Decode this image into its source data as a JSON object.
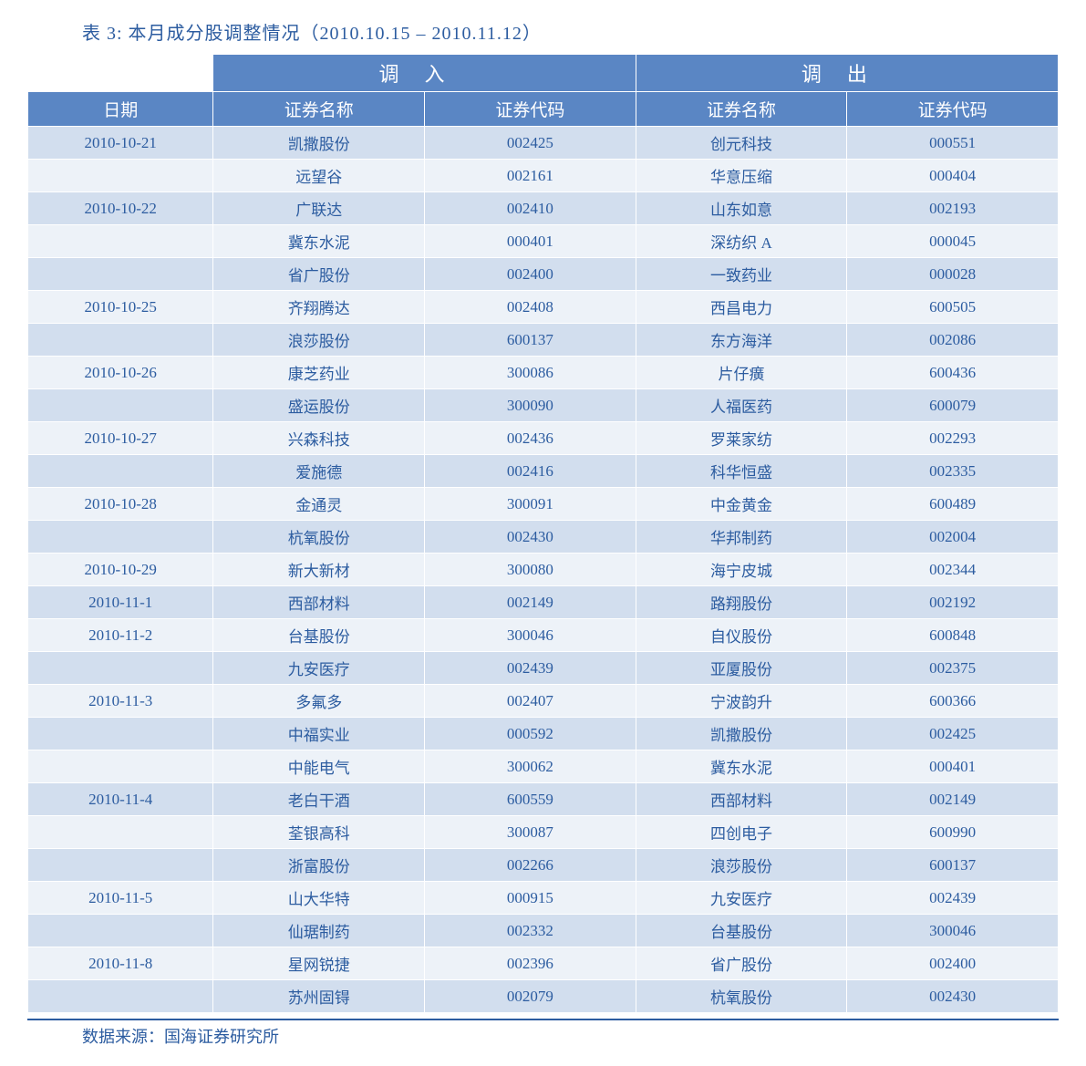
{
  "title": "表 3:  本月成分股调整情况（2010.10.15 – 2010.11.12）",
  "group_headers": {
    "in": "调入",
    "out": "调出"
  },
  "col_headers": {
    "date": "日期",
    "in_name": "证券名称",
    "in_code": "证券代码",
    "out_name": "证券名称",
    "out_code": "证券代码"
  },
  "rows": [
    {
      "date": "2010-10-21",
      "in_name": "凯撒股份",
      "in_code": "002425",
      "out_name": "创元科技",
      "out_code": "000551"
    },
    {
      "date": "",
      "in_name": "远望谷",
      "in_code": "002161",
      "out_name": "华意压缩",
      "out_code": "000404"
    },
    {
      "date": "2010-10-22",
      "in_name": "广联达",
      "in_code": "002410",
      "out_name": "山东如意",
      "out_code": "002193"
    },
    {
      "date": "",
      "in_name": "冀东水泥",
      "in_code": "000401",
      "out_name": "深纺织 A",
      "out_code": "000045"
    },
    {
      "date": "",
      "in_name": "省广股份",
      "in_code": "002400",
      "out_name": "一致药业",
      "out_code": "000028"
    },
    {
      "date": "2010-10-25",
      "in_name": "齐翔腾达",
      "in_code": "002408",
      "out_name": "西昌电力",
      "out_code": "600505"
    },
    {
      "date": "",
      "in_name": "浪莎股份",
      "in_code": "600137",
      "out_name": "东方海洋",
      "out_code": "002086"
    },
    {
      "date": "2010-10-26",
      "in_name": "康芝药业",
      "in_code": "300086",
      "out_name": "片仔癀",
      "out_code": "600436"
    },
    {
      "date": "",
      "in_name": "盛运股份",
      "in_code": "300090",
      "out_name": "人福医药",
      "out_code": "600079"
    },
    {
      "date": "2010-10-27",
      "in_name": "兴森科技",
      "in_code": "002436",
      "out_name": "罗莱家纺",
      "out_code": "002293"
    },
    {
      "date": "",
      "in_name": "爱施德",
      "in_code": "002416",
      "out_name": "科华恒盛",
      "out_code": "002335"
    },
    {
      "date": "2010-10-28",
      "in_name": "金通灵",
      "in_code": "300091",
      "out_name": "中金黄金",
      "out_code": "600489"
    },
    {
      "date": "",
      "in_name": "杭氧股份",
      "in_code": "002430",
      "out_name": "华邦制药",
      "out_code": "002004"
    },
    {
      "date": "2010-10-29",
      "in_name": "新大新材",
      "in_code": "300080",
      "out_name": "海宁皮城",
      "out_code": "002344"
    },
    {
      "date": "2010-11-1",
      "in_name": "西部材料",
      "in_code": "002149",
      "out_name": "路翔股份",
      "out_code": "002192"
    },
    {
      "date": "2010-11-2",
      "in_name": "台基股份",
      "in_code": "300046",
      "out_name": "自仪股份",
      "out_code": "600848"
    },
    {
      "date": "",
      "in_name": "九安医疗",
      "in_code": "002439",
      "out_name": "亚厦股份",
      "out_code": "002375"
    },
    {
      "date": "2010-11-3",
      "in_name": "多氟多",
      "in_code": "002407",
      "out_name": "宁波韵升",
      "out_code": "600366"
    },
    {
      "date": "",
      "in_name": "中福实业",
      "in_code": "000592",
      "out_name": "凯撒股份",
      "out_code": "002425"
    },
    {
      "date": "",
      "in_name": "中能电气",
      "in_code": "300062",
      "out_name": "冀东水泥",
      "out_code": "000401"
    },
    {
      "date": "2010-11-4",
      "in_name": "老白干酒",
      "in_code": "600559",
      "out_name": "西部材料",
      "out_code": "002149"
    },
    {
      "date": "",
      "in_name": "荃银高科",
      "in_code": "300087",
      "out_name": "四创电子",
      "out_code": "600990"
    },
    {
      "date": "",
      "in_name": "浙富股份",
      "in_code": "002266",
      "out_name": "浪莎股份",
      "out_code": "600137"
    },
    {
      "date": "2010-11-5",
      "in_name": "山大华特",
      "in_code": "000915",
      "out_name": "九安医疗",
      "out_code": "002439"
    },
    {
      "date": "",
      "in_name": "仙琚制药",
      "in_code": "002332",
      "out_name": "台基股份",
      "out_code": "300046"
    },
    {
      "date": "2010-11-8",
      "in_name": "星网锐捷",
      "in_code": "002396",
      "out_name": "省广股份",
      "out_code": "002400"
    },
    {
      "date": "",
      "in_name": "苏州固锝",
      "in_code": "002079",
      "out_name": "杭氧股份",
      "out_code": "002430"
    }
  ],
  "footer": "数据来源：国海证券研究所",
  "colors": {
    "header_bg": "#5a86c4",
    "header_text": "#ffffff",
    "row_odd_bg": "#d2deee",
    "row_even_bg": "#edf2f8",
    "cell_text": "#2c5ca0",
    "title_text": "#2c5ca0",
    "border": "#ffffff"
  }
}
